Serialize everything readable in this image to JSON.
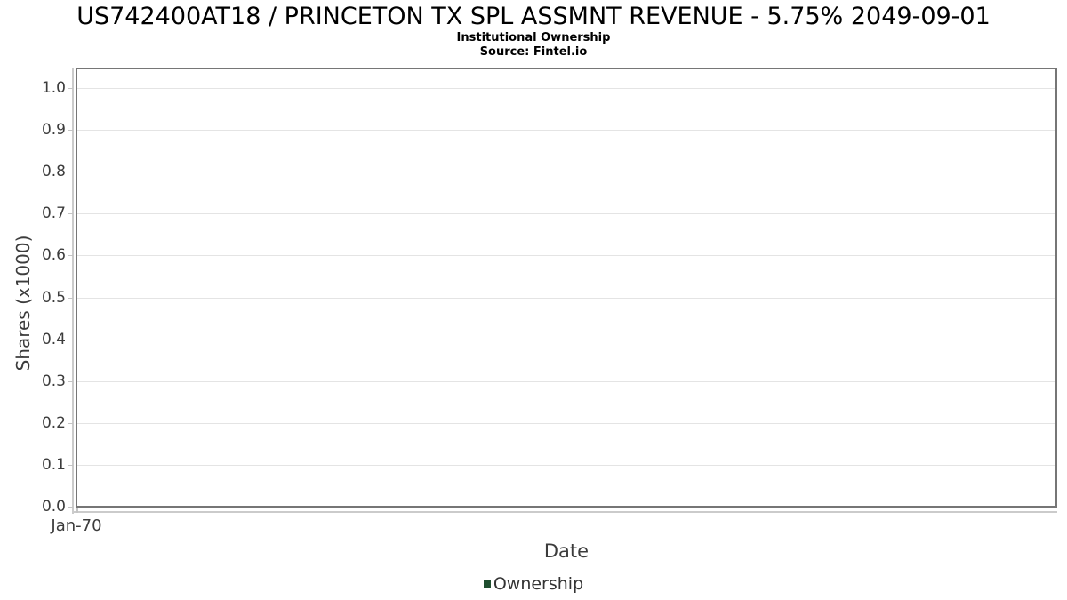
{
  "header": {
    "title": "US742400AT18 / PRINCETON TX SPL ASSMNT REVENUE - 5.75% 2049-09-01",
    "subtitle": "Institutional Ownership",
    "source": "Source: Fintel.io"
  },
  "chart_data": {
    "type": "line",
    "title": "US742400AT18 / PRINCETON TX SPL ASSMNT REVENUE - 5.75% 2049-09-01",
    "subtitle": "Institutional Ownership",
    "source": "Source: Fintel.io",
    "xlabel": "Date",
    "ylabel": "Shares (x1000)",
    "x_tick_labels": [
      "Jan-70"
    ],
    "y_ticks": [
      0.0,
      0.1,
      0.2,
      0.3,
      0.4,
      0.5,
      0.6,
      0.7,
      0.8,
      0.9,
      1.0
    ],
    "ylim": [
      0.0,
      1.05
    ],
    "grid": true,
    "legend": {
      "position": "bottom",
      "entries": [
        {
          "label": "Ownership",
          "color": "#1f4f2f"
        }
      ]
    },
    "series": [
      {
        "name": "Ownership",
        "color": "#1f4f2f",
        "x": [],
        "values": []
      }
    ],
    "notes": "empty plot - no data points rendered"
  },
  "colors": {
    "plot_border": "#767676",
    "gridline": "#e4e4e4",
    "axis_line": "#cbcbcb",
    "tick_text": "#3c3c3c",
    "legend_marker": "#1f4f2f"
  }
}
